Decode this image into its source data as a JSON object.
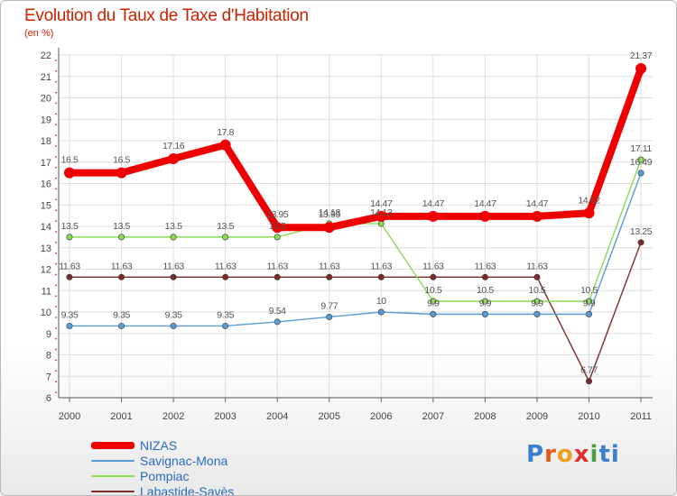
{
  "header": {
    "title": "Evolution du Taux de Taxe d'Habitation",
    "unit": "(en %)"
  },
  "logo": {
    "text": "Proxiti",
    "letters": [
      "P",
      "r",
      "o",
      "x",
      "i",
      "ti"
    ]
  },
  "chart_data": {
    "type": "line",
    "title": "Evolution du Taux de Taxe d'Habitation",
    "ylabel": "(en %)",
    "xlabel": "",
    "ylim": [
      6,
      22
    ],
    "yticks": [
      "6",
      "7",
      "8",
      "9",
      "10",
      "11",
      "12",
      "13",
      "14",
      "15",
      "16",
      "17",
      "18",
      "19",
      "20",
      "21",
      "22"
    ],
    "categories": [
      "2000",
      "2001",
      "2002",
      "2003",
      "2004",
      "2005",
      "2006",
      "2007",
      "2008",
      "2009",
      "2010",
      "2011"
    ],
    "series": [
      {
        "name": "NIZAS",
        "color": "#ee0000",
        "values": [
          16.5,
          16.5,
          17.16,
          17.8,
          13.95,
          13.95,
          14.47,
          14.47,
          14.47,
          14.47,
          14.62,
          21.37
        ],
        "labels": [
          "16.5",
          "16.5",
          "17.16",
          "17.8",
          "13.95",
          "13.95",
          "14.47",
          "14.47",
          "14.47",
          "14.47",
          "14.62",
          "21.37"
        ]
      },
      {
        "name": "Savignac-Mona",
        "color": "#5b9bd5",
        "values": [
          9.35,
          9.35,
          9.35,
          9.35,
          9.54,
          9.77,
          10,
          9.9,
          9.9,
          9.9,
          9.9,
          16.49
        ],
        "labels": [
          "9.35",
          "9.35",
          "9.35",
          "9.35",
          "9.54",
          "9.77",
          "10",
          "9.9",
          "9.9",
          "9.9",
          "9.9",
          "16.49"
        ]
      },
      {
        "name": "Pompiac",
        "color": "#88dd55",
        "values": [
          13.5,
          13.5,
          13.5,
          13.5,
          13.5,
          14.13,
          14.13,
          10.5,
          10.5,
          10.5,
          10.5,
          17.11
        ],
        "labels": [
          "13.5",
          "13.5",
          "13.5",
          "13.5",
          "13.5",
          "14.13",
          "14.13",
          "10.5",
          "10.5",
          "10.5",
          "10.5",
          "17.11"
        ]
      },
      {
        "name": "Labastide-Savès",
        "color": "#7b2a2a",
        "values": [
          11.63,
          11.63,
          11.63,
          11.63,
          11.63,
          11.63,
          11.63,
          11.63,
          11.63,
          11.63,
          6.77,
          13.25
        ],
        "labels": [
          "11.63",
          "11.63",
          "11.63",
          "11.63",
          "11.63",
          "11.63",
          "11.63",
          "11.63",
          "11.63",
          "11.63",
          "6.77",
          "13.25"
        ]
      }
    ],
    "label_color": "#555555",
    "axis_color": "#cc0000",
    "grid": true,
    "legend_position": "bottom-left"
  }
}
